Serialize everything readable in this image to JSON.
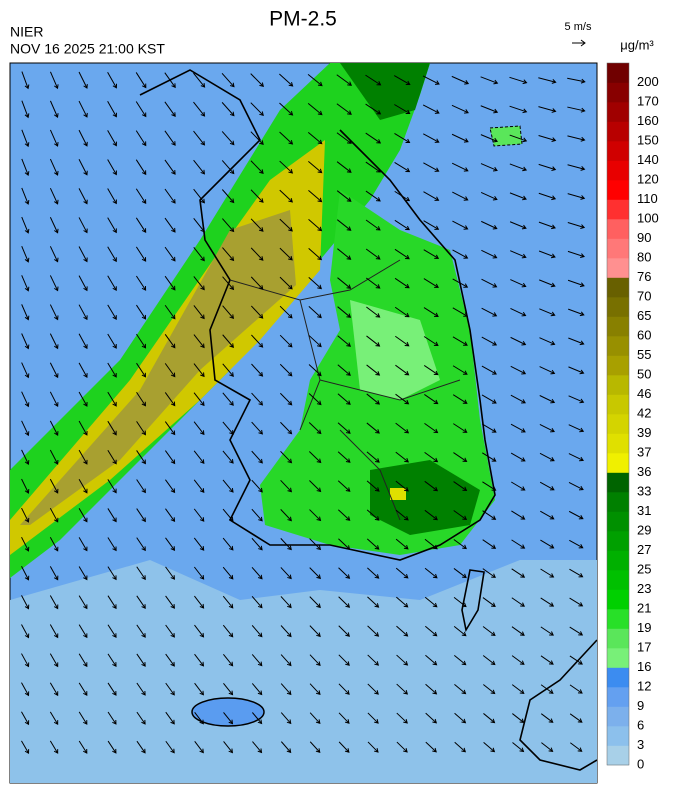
{
  "header": {
    "title": "PM-2.5",
    "agency": "NIER",
    "timestamp": "NOV 16 2025 21:00 KST",
    "wind_scale": "5 m/s"
  },
  "colorbar": {
    "unit": "μg/m³",
    "levels": [
      0,
      3,
      6,
      9,
      12,
      16,
      17,
      19,
      21,
      23,
      25,
      27,
      29,
      31,
      33,
      36,
      37,
      39,
      42,
      46,
      50,
      55,
      60,
      65,
      70,
      76,
      80,
      90,
      100,
      110,
      120,
      140,
      150,
      160,
      170,
      200
    ],
    "colors": [
      "#a8d0e8",
      "#8cc0ec",
      "#7cb0ec",
      "#64a0f0",
      "#3c8cf0",
      "#78f078",
      "#5ae65a",
      "#28e028",
      "#00d000",
      "#00c000",
      "#00b000",
      "#00a000",
      "#009000",
      "#008000",
      "#006400",
      "#f0f000",
      "#e0e000",
      "#d4d400",
      "#c8c800",
      "#b8b800",
      "#a8a000",
      "#989000",
      "#888000",
      "#787000",
      "#686000",
      "#ff9090",
      "#ff7878",
      "#ff6060",
      "#ff3030",
      "#ff0000",
      "#e80000",
      "#d00000",
      "#b80000",
      "#a00000",
      "#880000",
      "#700000"
    ]
  }
}
